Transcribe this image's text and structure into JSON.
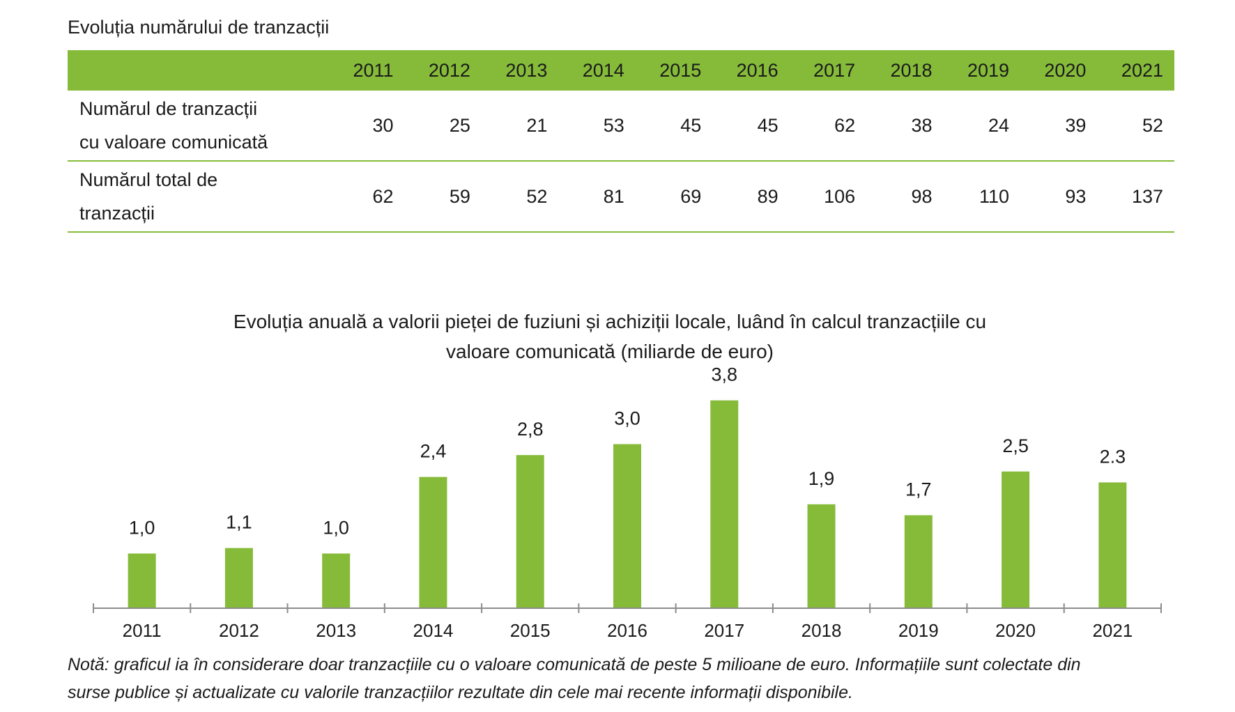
{
  "table": {
    "title": "Evoluția numărului de tranzacții",
    "years": [
      "2011",
      "2012",
      "2013",
      "2014",
      "2015",
      "2016",
      "2017",
      "2018",
      "2019",
      "2020",
      "2021"
    ],
    "rows": [
      {
        "label_line1": "Numărul de tranzacții",
        "label_line2": "cu valoare comunicată",
        "values": [
          "30",
          "25",
          "21",
          "53",
          "45",
          "45",
          "62",
          "38",
          "24",
          "39",
          "52"
        ]
      },
      {
        "label_line1": "Numărul total de",
        "label_line2": "tranzacții",
        "values": [
          "62",
          "59",
          "52",
          "81",
          "69",
          "89",
          "106",
          "98",
          "110",
          "93",
          "137"
        ]
      }
    ],
    "accent_color": "#86bb3a"
  },
  "chart_data": {
    "type": "bar",
    "title_line1": "Evoluția anuală a valorii pieței de fuziuni și achiziții locale, luând în calcul tranzacțiile cu",
    "title_line2": "valoare comunicată (miliarde de euro)",
    "categories": [
      "2011",
      "2012",
      "2013",
      "2014",
      "2015",
      "2016",
      "2017",
      "2018",
      "2019",
      "2020",
      "2021"
    ],
    "values": [
      1.0,
      1.1,
      1.0,
      2.4,
      2.8,
      3.0,
      3.8,
      1.9,
      1.7,
      2.5,
      2.3
    ],
    "data_labels": [
      "1,0",
      "1,1",
      "1,0",
      "2,4",
      "2,8",
      "3,0",
      "3,8",
      "1,9",
      "1,7",
      "2,5",
      "2.3"
    ],
    "ylim": [
      0,
      4
    ],
    "grid": false,
    "bar_color": "#86bb3a"
  },
  "note": {
    "line1": "Notă: graficul ia în considerare doar tranzacțiile cu o valoare comunicată de peste 5 milioane de euro. Informațiile sunt colectate din",
    "line2": "surse publice și actualizate cu valorile tranzacțiilor rezultate din cele mai recente informații disponibile."
  }
}
